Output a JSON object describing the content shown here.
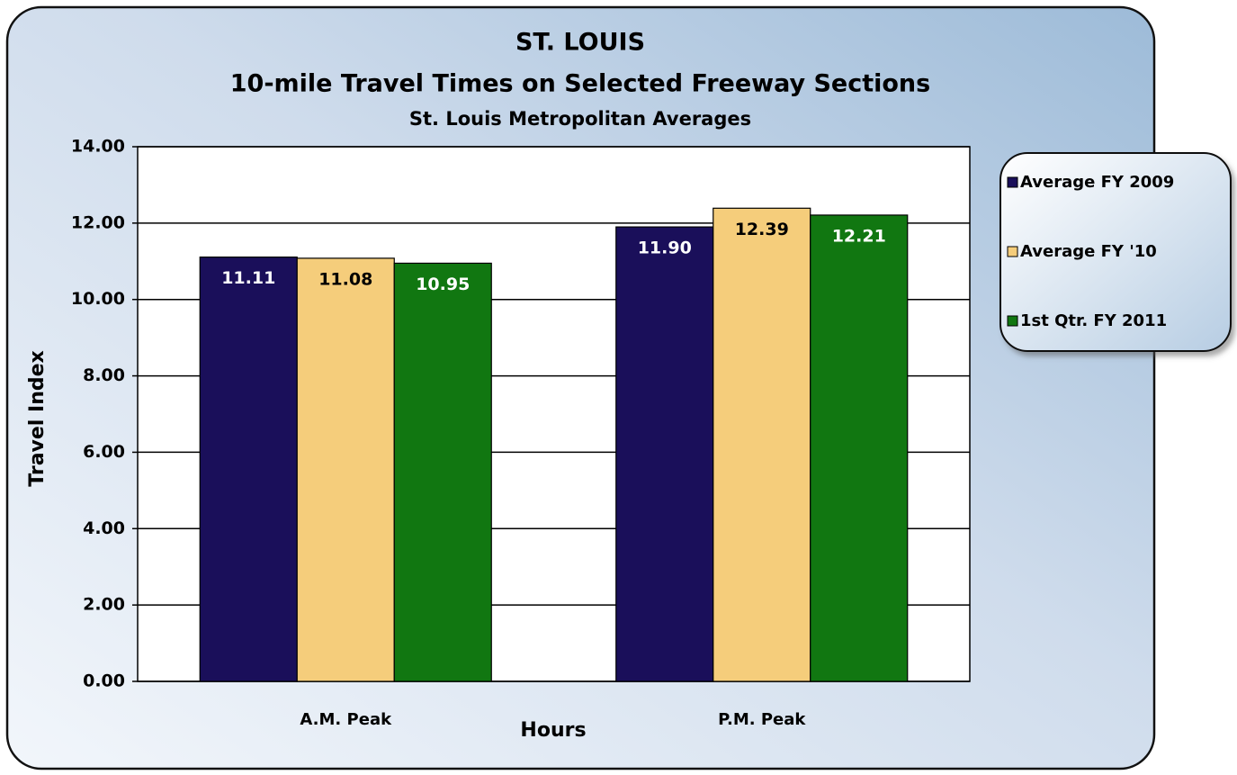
{
  "chart_data": {
    "type": "bar",
    "title": [
      "ST.  LOUIS",
      "10-mile Travel Times on Selected Freeway Sections"
    ],
    "subtitle": "St. Louis Metropolitan Averages",
    "x_label": "Hours",
    "y_label": "Travel Index",
    "categories": [
      "A.M. Peak",
      "P.M. Peak"
    ],
    "series": [
      {
        "name": "Average FY 2009",
        "color": "#1a0f5a",
        "values": [
          11.11,
          11.9
        ],
        "value_labels": [
          "11.11",
          "11.90"
        ]
      },
      {
        "name": "Average FY '10",
        "color": "#f5cd7b",
        "values": [
          11.08,
          12.39
        ],
        "value_labels": [
          "11.08",
          "12.39"
        ]
      },
      {
        "name": "1st Qtr. FY 2011",
        "color": "#117711",
        "values": [
          10.95,
          12.21
        ],
        "value_labels": [
          "10.95",
          "12.21"
        ]
      }
    ],
    "ylim": [
      0,
      14
    ],
    "yticks": [
      {
        "value": 0,
        "label": "0.00"
      },
      {
        "value": 2,
        "label": "2.00"
      },
      {
        "value": 4,
        "label": "4.00"
      },
      {
        "value": 6,
        "label": "6.00"
      },
      {
        "value": 8,
        "label": "8.00"
      },
      {
        "value": 10,
        "label": "10.00"
      },
      {
        "value": 12,
        "label": "12.00"
      },
      {
        "value": 14,
        "label": "14.00"
      }
    ],
    "grid": true,
    "legend": "right"
  }
}
